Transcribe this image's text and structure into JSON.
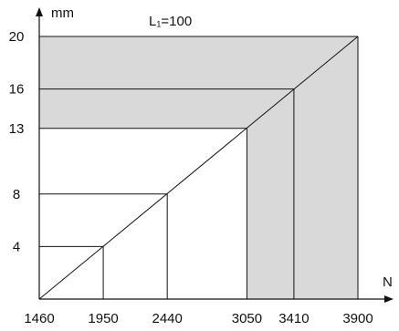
{
  "chart_data": {
    "type": "line",
    "title": "L₁=100",
    "ylabel": "mm",
    "xlabel": "N",
    "x_ticks": [
      1460,
      1950,
      2440,
      3050,
      3410,
      3900
    ],
    "y_ticks": [
      4,
      8,
      13,
      16,
      20
    ],
    "xlim": [
      1460,
      3900
    ],
    "ylim": [
      0,
      20
    ],
    "series": [
      {
        "x": [
          1460,
          3900
        ],
        "y": [
          0,
          20
        ]
      }
    ],
    "step_points": [
      {
        "x": 1950,
        "y": 4,
        "shaded": false
      },
      {
        "x": 2440,
        "y": 8,
        "shaded": false
      },
      {
        "x": 3050,
        "y": 13,
        "shaded": false
      },
      {
        "x": 3410,
        "y": 16,
        "shaded": true
      },
      {
        "x": 3900,
        "y": 20,
        "shaded": true
      }
    ],
    "shade_color": "#d9d9d9",
    "line_color": "#111111"
  }
}
